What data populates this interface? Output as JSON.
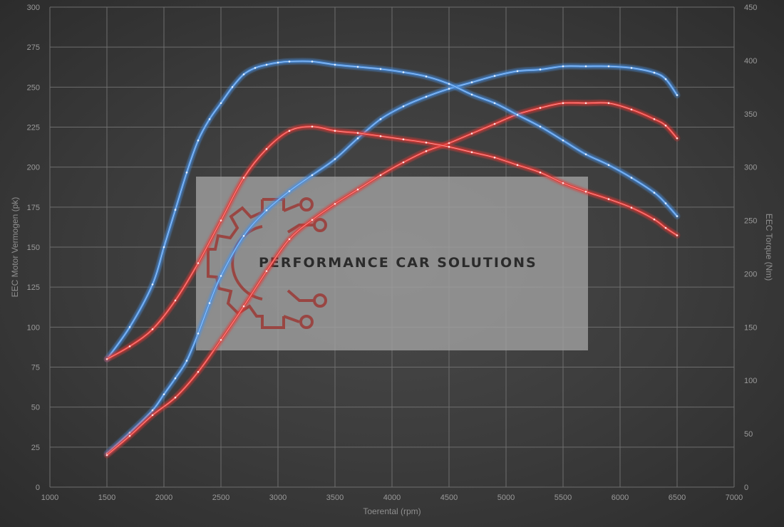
{
  "chart_data": {
    "type": "line",
    "title": "",
    "xlabel": "Toerental (rpm)",
    "ylabel": "EEC Motor Vermogen (pk)",
    "y2label": "EEC Torque (Nm)",
    "xlim": [
      1000,
      7000
    ],
    "ylim": [
      0,
      300
    ],
    "y2lim": [
      0,
      450
    ],
    "x_ticks": [
      1000,
      1500,
      2000,
      2500,
      3000,
      3500,
      4000,
      4500,
      5000,
      5500,
      6000,
      6500,
      7000
    ],
    "y_ticks": [
      0,
      25,
      50,
      75,
      100,
      125,
      150,
      175,
      200,
      225,
      250,
      275,
      300
    ],
    "y2_ticks": [
      0,
      50,
      100,
      150,
      200,
      250,
      300,
      350,
      400,
      450
    ],
    "grid": true,
    "legend": "none",
    "series": [
      {
        "kind": "power-tuned",
        "axis": "left",
        "color": "#4a90e2",
        "x": [
          1500,
          1700,
          1900,
          2000,
          2100,
          2200,
          2300,
          2400,
          2500,
          2700,
          2900,
          3100,
          3300,
          3500,
          3700,
          3900,
          4100,
          4300,
          4500,
          4700,
          4900,
          5100,
          5300,
          5500,
          5700,
          5900,
          6100,
          6300,
          6400,
          6500
        ],
        "y": [
          21,
          34,
          48,
          58,
          68,
          79,
          96,
          115,
          132,
          157,
          173,
          185,
          195,
          205,
          218,
          230,
          238,
          244,
          249,
          253,
          257,
          260,
          261,
          263,
          263,
          263,
          262,
          259,
          255,
          245
        ]
      },
      {
        "kind": "power-stock",
        "axis": "left",
        "color": "#e53935",
        "x": [
          1500,
          1700,
          1900,
          2100,
          2300,
          2500,
          2700,
          2900,
          3100,
          3300,
          3500,
          3700,
          3900,
          4100,
          4300,
          4500,
          4700,
          4900,
          5100,
          5300,
          5500,
          5700,
          5900,
          6100,
          6300,
          6400,
          6500
        ],
        "y": [
          20,
          32,
          45,
          56,
          72,
          92,
          113,
          135,
          155,
          167,
          177,
          186,
          195,
          203,
          210,
          215,
          221,
          227,
          233,
          237,
          240,
          240,
          240,
          236,
          230,
          226,
          218
        ]
      },
      {
        "kind": "torque-tuned",
        "axis": "right",
        "color": "#4a90e2",
        "x": [
          1500,
          1700,
          1900,
          2000,
          2100,
          2200,
          2300,
          2400,
          2500,
          2600,
          2700,
          2800,
          2900,
          3000,
          3100,
          3300,
          3500,
          3700,
          3900,
          4100,
          4300,
          4500,
          4700,
          4900,
          5100,
          5300,
          5500,
          5700,
          5900,
          6100,
          6300,
          6400,
          6500
        ],
        "y": [
          120,
          150,
          190,
          225,
          260,
          295,
          325,
          345,
          360,
          375,
          387,
          393,
          396,
          398,
          399,
          399,
          396,
          394,
          392,
          389,
          385,
          378,
          368,
          360,
          349,
          338,
          325,
          312,
          302,
          290,
          276,
          266,
          254
        ]
      },
      {
        "kind": "torque-stock",
        "axis": "right",
        "color": "#e53935",
        "x": [
          1500,
          1700,
          1900,
          2100,
          2300,
          2500,
          2700,
          2900,
          3100,
          3300,
          3500,
          3700,
          3900,
          4100,
          4300,
          4500,
          4700,
          4900,
          5100,
          5300,
          5500,
          5700,
          5900,
          6100,
          6300,
          6400,
          6500
        ],
        "y": [
          120,
          132,
          148,
          175,
          210,
          250,
          290,
          317,
          334,
          338,
          334,
          332,
          329,
          326,
          323,
          319,
          314,
          309,
          302,
          295,
          285,
          277,
          270,
          262,
          251,
          243,
          236
        ]
      }
    ]
  },
  "watermark": {
    "text": "PERFORMANCE CAR SOLUTIONS",
    "logo": "gear-circuit-logo-icon",
    "box_color": "#a3a3a3",
    "logo_color": "#9c3a36"
  }
}
